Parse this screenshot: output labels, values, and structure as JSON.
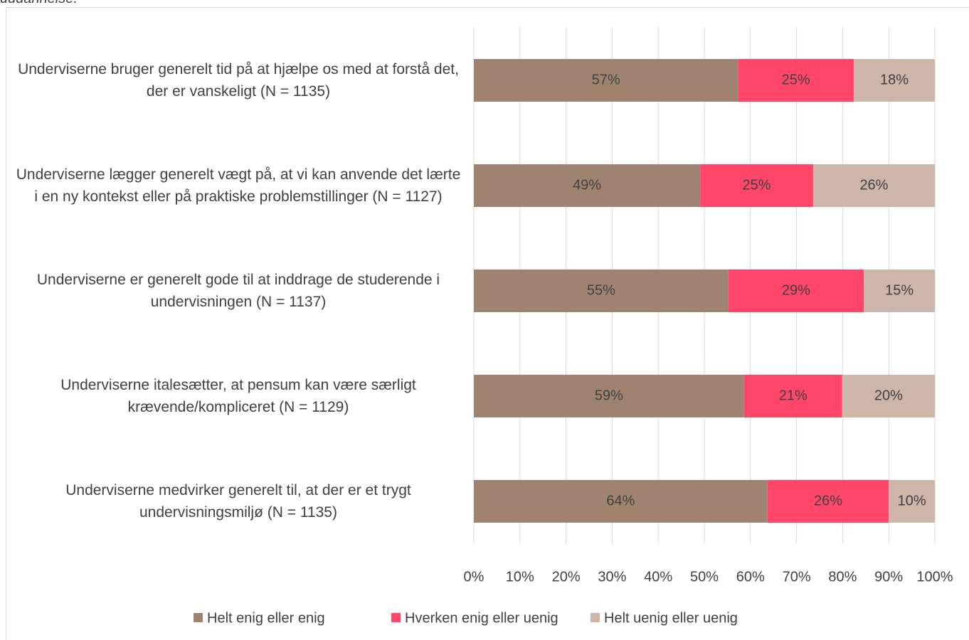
{
  "chart_data": {
    "type": "stacked_barh",
    "caption": "uddannelse.",
    "categories": [
      "Underviserne bruger generelt tid på at hjælpe os med at forstå det, der er vanskeligt (N = 1135)",
      "Underviserne lægger generelt vægt på, at vi kan anvende det lærte i en ny kontekst eller på praktiske problemstillinger (N = 1127)",
      "Underviserne er generelt gode til at inddrage de studerende i undervisningen (N = 1137)",
      "Underviserne italesætter, at pensum kan være særligt krævende/kompliceret (N = 1129)",
      "Underviserne medvirker generelt til, at der er et trygt undervisningsmiljø (N = 1135)"
    ],
    "series": [
      {
        "name": "Helt enig eller enig",
        "color": "#a08270",
        "values": [
          57.3,
          49.1,
          55.2,
          58.6,
          63.7
        ],
        "value_labels": [
          "57%",
          "49%",
          "55%",
          "59%",
          "64%"
        ]
      },
      {
        "name": "Hverken enig eller uenig",
        "color": "#ff4569",
        "values": [
          25.1,
          24.5,
          29.4,
          21.3,
          26.3
        ],
        "value_labels": [
          "25%",
          "25%",
          "29%",
          "21%",
          "26%"
        ]
      },
      {
        "name": "Helt uenig eller uenig",
        "color": "#cdb5aa",
        "values": [
          17.6,
          26.4,
          15.4,
          20.1,
          10.0
        ],
        "value_labels": [
          "18%",
          "26%",
          "15%",
          "20%",
          "10%"
        ]
      }
    ],
    "xlim": [
      0,
      100
    ],
    "xticks": [
      {
        "value": 0,
        "label": "0%"
      },
      {
        "value": 10,
        "label": "10%"
      },
      {
        "value": 20,
        "label": "20%"
      },
      {
        "value": 30,
        "label": "30%"
      },
      {
        "value": 40,
        "label": "40%"
      },
      {
        "value": 50,
        "label": "50%"
      },
      {
        "value": 60,
        "label": "60%"
      },
      {
        "value": 70,
        "label": "70%"
      },
      {
        "value": 80,
        "label": "80%"
      },
      {
        "value": 90,
        "label": "90%"
      },
      {
        "value": 100,
        "label": "100%"
      }
    ],
    "grid": true,
    "legend": "bottom"
  }
}
